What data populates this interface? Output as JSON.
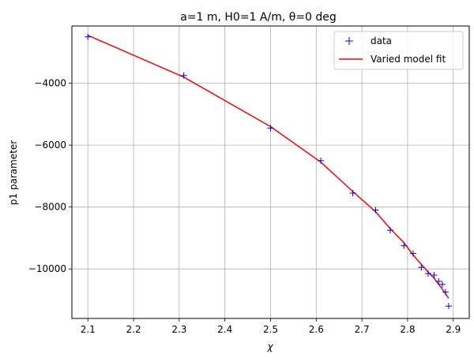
{
  "chart_data": {
    "type": "scatter",
    "title": "a=1 m, H0=1 A/m, θ=0 deg",
    "xlabel": "χ",
    "ylabel": "p1 parameter",
    "xlim": [
      2.065,
      2.935
    ],
    "ylim": [
      -11600,
      -2150
    ],
    "xticks": [
      2.1,
      2.2,
      2.3,
      2.4,
      2.5,
      2.6,
      2.7,
      2.8,
      2.9
    ],
    "xtick_labels": [
      "2.1",
      "2.2",
      "2.3",
      "2.4",
      "2.5",
      "2.6",
      "2.7",
      "2.8",
      "2.9"
    ],
    "yticks": [
      -10000,
      -8000,
      -6000,
      -4000
    ],
    "ytick_labels": [
      "−10000",
      "−8000",
      "−6000",
      "−4000"
    ],
    "grid": true,
    "legend_position": "top-right",
    "series": [
      {
        "name": "data",
        "kind": "markers",
        "marker": "+",
        "color": "#0000ff",
        "x": [
          2.1,
          2.31,
          2.5,
          2.61,
          2.68,
          2.73,
          2.762,
          2.792,
          2.812,
          2.83,
          2.845,
          2.858,
          2.868,
          2.876,
          2.883,
          2.89
        ],
        "y": [
          -2500,
          -3750,
          -5450,
          -6500,
          -7550,
          -8100,
          -8750,
          -9250,
          -9500,
          -9950,
          -10150,
          -10200,
          -10400,
          -10500,
          -10750,
          -11200
        ]
      },
      {
        "name": "Varied model fit",
        "kind": "line",
        "color": "#ff0000",
        "x": [
          2.1,
          2.31,
          2.5,
          2.61,
          2.68,
          2.73,
          2.762,
          2.792,
          2.812,
          2.83,
          2.845,
          2.858,
          2.868,
          2.876,
          2.883,
          2.89
        ],
        "y": [
          -2450,
          -3800,
          -5400,
          -6550,
          -7500,
          -8150,
          -8700,
          -9150,
          -9550,
          -9850,
          -10100,
          -10300,
          -10500,
          -10650,
          -10800,
          -10950
        ]
      }
    ]
  }
}
